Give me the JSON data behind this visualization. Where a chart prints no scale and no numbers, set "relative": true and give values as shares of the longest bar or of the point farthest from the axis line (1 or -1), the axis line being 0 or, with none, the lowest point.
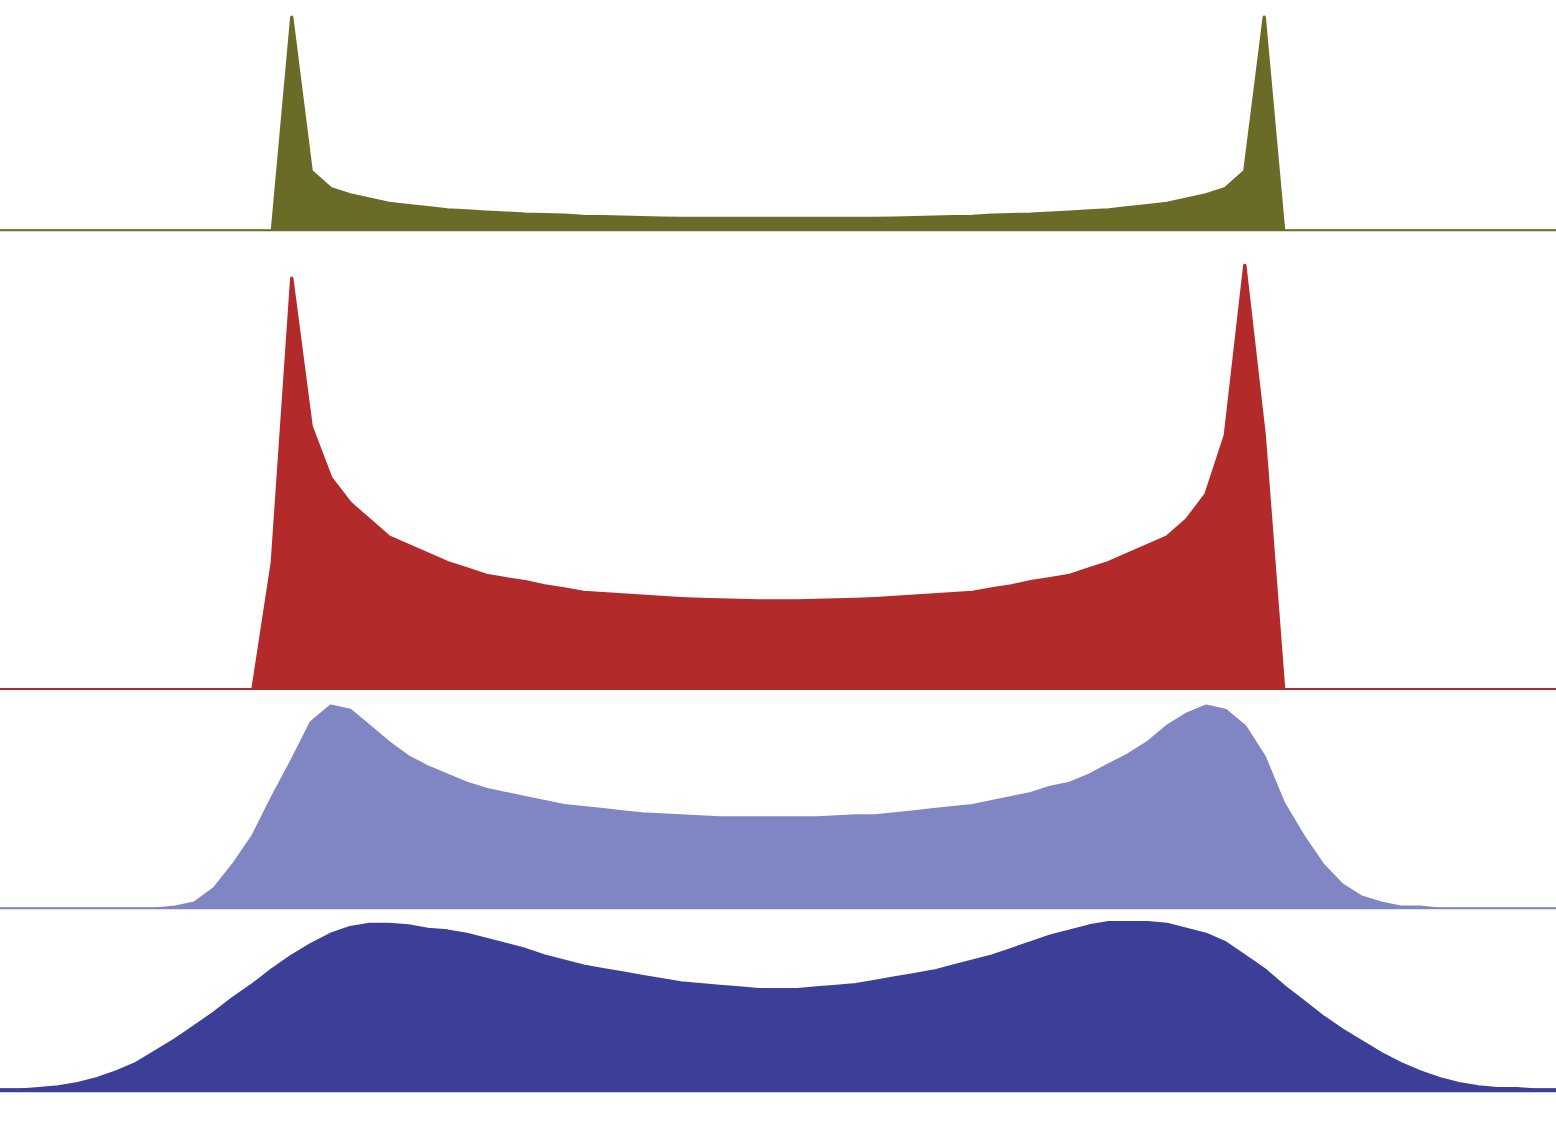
{
  "chart_data": [
    {
      "type": "area",
      "relative": true,
      "color": "#6b6b28",
      "categories": [
        null,
        null,
        null,
        null,
        null,
        null,
        null,
        null,
        null,
        null,
        null,
        null,
        null,
        null,
        null,
        null,
        null,
        null,
        null,
        null,
        null,
        null,
        null,
        null,
        null,
        null,
        null,
        null,
        null,
        null,
        null,
        null,
        null,
        null,
        null,
        null,
        null,
        null,
        null,
        null,
        null,
        null,
        null,
        null,
        null,
        null,
        null,
        null,
        null,
        null,
        null,
        null,
        null,
        null,
        null,
        null,
        null,
        null,
        null,
        null,
        null,
        null,
        null,
        null,
        null,
        null,
        null,
        null,
        null,
        null,
        null,
        null,
        null,
        null,
        null,
        null,
        null,
        null,
        null,
        null,
        null
      ],
      "values": [
        0,
        0,
        0,
        0,
        0,
        0,
        0,
        0,
        0,
        0,
        0,
        0,
        0,
        0,
        0,
        1,
        0.28,
        0.2,
        0.17,
        0.15,
        0.13,
        0.12,
        0.11,
        0.1,
        0.095,
        0.09,
        0.085,
        0.08,
        0.078,
        0.075,
        0.07,
        0.068,
        0.066,
        0.064,
        0.062,
        0.06,
        0.06,
        0.06,
        0.06,
        0.06,
        0.06,
        0.06,
        0.06,
        0.06,
        0.06,
        0.06,
        0.062,
        0.064,
        0.066,
        0.068,
        0.07,
        0.075,
        0.078,
        0.08,
        0.085,
        0.09,
        0.095,
        0.1,
        0.11,
        0.12,
        0.13,
        0.15,
        0.17,
        0.2,
        0.28,
        1,
        0,
        0,
        0,
        0,
        0,
        0,
        0,
        0,
        0,
        0,
        0,
        0,
        0,
        0,
        0
      ]
    },
    {
      "type": "area",
      "relative": true,
      "color": "#b22a2a",
      "categories": [
        null,
        null,
        null,
        null,
        null,
        null,
        null,
        null,
        null,
        null,
        null,
        null,
        null,
        null,
        null,
        null,
        null,
        null,
        null,
        null,
        null,
        null,
        null,
        null,
        null,
        null,
        null,
        null,
        null,
        null,
        null,
        null,
        null,
        null,
        null,
        null,
        null,
        null,
        null,
        null,
        null,
        null,
        null,
        null,
        null,
        null,
        null,
        null,
        null,
        null,
        null,
        null,
        null,
        null,
        null,
        null,
        null,
        null,
        null,
        null,
        null,
        null,
        null,
        null,
        null,
        null,
        null,
        null,
        null,
        null,
        null,
        null,
        null,
        null,
        null,
        null,
        null,
        null,
        null,
        null,
        null
      ],
      "values": [
        0,
        0,
        0,
        0,
        0,
        0,
        0,
        0,
        0,
        0,
        0,
        0,
        0,
        0,
        0.3,
        0.97,
        0.62,
        0.5,
        0.44,
        0.4,
        0.36,
        0.34,
        0.32,
        0.3,
        0.285,
        0.27,
        0.262,
        0.255,
        0.245,
        0.238,
        0.23,
        0.227,
        0.224,
        0.221,
        0.218,
        0.215,
        0.213,
        0.212,
        0.211,
        0.21,
        0.21,
        0.21,
        0.211,
        0.212,
        0.213,
        0.215,
        0.218,
        0.221,
        0.224,
        0.227,
        0.23,
        0.238,
        0.245,
        0.255,
        0.262,
        0.27,
        0.285,
        0.3,
        0.32,
        0.34,
        0.36,
        0.4,
        0.46,
        0.6,
        1,
        0.6,
        0,
        0,
        0,
        0,
        0,
        0,
        0,
        0,
        0,
        0,
        0,
        0,
        0,
        0,
        0
      ]
    },
    {
      "type": "area",
      "relative": true,
      "color": "#8086c4",
      "categories": [
        null,
        null,
        null,
        null,
        null,
        null,
        null,
        null,
        null,
        null,
        null,
        null,
        null,
        null,
        null,
        null,
        null,
        null,
        null,
        null,
        null,
        null,
        null,
        null,
        null,
        null,
        null,
        null,
        null,
        null,
        null,
        null,
        null,
        null,
        null,
        null,
        null,
        null,
        null,
        null,
        null,
        null,
        null,
        null,
        null,
        null,
        null,
        null,
        null,
        null,
        null,
        null,
        null,
        null,
        null,
        null,
        null,
        null,
        null,
        null,
        null,
        null,
        null,
        null,
        null,
        null,
        null,
        null,
        null,
        null,
        null,
        null,
        null,
        null,
        null,
        null,
        null,
        null,
        null,
        null,
        null
      ],
      "values": [
        0,
        0,
        0,
        0,
        0,
        0,
        0,
        0,
        0,
        0.01,
        0.03,
        0.1,
        0.22,
        0.36,
        0.55,
        0.73,
        0.92,
        1,
        0.98,
        0.9,
        0.82,
        0.75,
        0.7,
        0.66,
        0.62,
        0.59,
        0.57,
        0.55,
        0.53,
        0.51,
        0.5,
        0.49,
        0.48,
        0.47,
        0.465,
        0.46,
        0.455,
        0.45,
        0.45,
        0.45,
        0.45,
        0.45,
        0.45,
        0.455,
        0.46,
        0.46,
        0.47,
        0.48,
        0.49,
        0.5,
        0.51,
        0.53,
        0.55,
        0.57,
        0.6,
        0.62,
        0.66,
        0.71,
        0.76,
        0.82,
        0.9,
        0.96,
        1,
        0.98,
        0.9,
        0.75,
        0.52,
        0.36,
        0.22,
        0.12,
        0.06,
        0.03,
        0.01,
        0.01,
        0,
        0,
        0,
        0,
        0,
        0,
        0
      ]
    },
    {
      "type": "area",
      "relative": true,
      "color": "#3c3f98",
      "categories": [
        null,
        null,
        null,
        null,
        null,
        null,
        null,
        null,
        null,
        null,
        null,
        null,
        null,
        null,
        null,
        null,
        null,
        null,
        null,
        null,
        null,
        null,
        null,
        null,
        null,
        null,
        null,
        null,
        null,
        null,
        null,
        null,
        null,
        null,
        null,
        null,
        null,
        null,
        null,
        null,
        null,
        null,
        null,
        null,
        null,
        null,
        null,
        null,
        null,
        null,
        null,
        null,
        null,
        null,
        null,
        null,
        null,
        null,
        null,
        null,
        null,
        null,
        null,
        null,
        null,
        null,
        null,
        null,
        null,
        null,
        null,
        null,
        null,
        null,
        null,
        null,
        null,
        null,
        null,
        null,
        null
      ],
      "values": [
        0,
        0,
        0.01,
        0.02,
        0.04,
        0.07,
        0.11,
        0.16,
        0.23,
        0.3,
        0.38,
        0.46,
        0.55,
        0.63,
        0.72,
        0.8,
        0.87,
        0.93,
        0.97,
        0.99,
        0.99,
        0.98,
        0.96,
        0.95,
        0.93,
        0.9,
        0.87,
        0.84,
        0.8,
        0.77,
        0.74,
        0.72,
        0.7,
        0.68,
        0.66,
        0.64,
        0.63,
        0.62,
        0.61,
        0.6,
        0.6,
        0.6,
        0.61,
        0.62,
        0.63,
        0.65,
        0.67,
        0.69,
        0.71,
        0.74,
        0.77,
        0.8,
        0.84,
        0.88,
        0.92,
        0.95,
        0.98,
        1,
        1,
        1,
        0.99,
        0.96,
        0.93,
        0.88,
        0.8,
        0.72,
        0.62,
        0.53,
        0.44,
        0.36,
        0.29,
        0.22,
        0.16,
        0.11,
        0.07,
        0.04,
        0.02,
        0.01,
        0.01,
        0,
        0
      ]
    }
  ]
}
